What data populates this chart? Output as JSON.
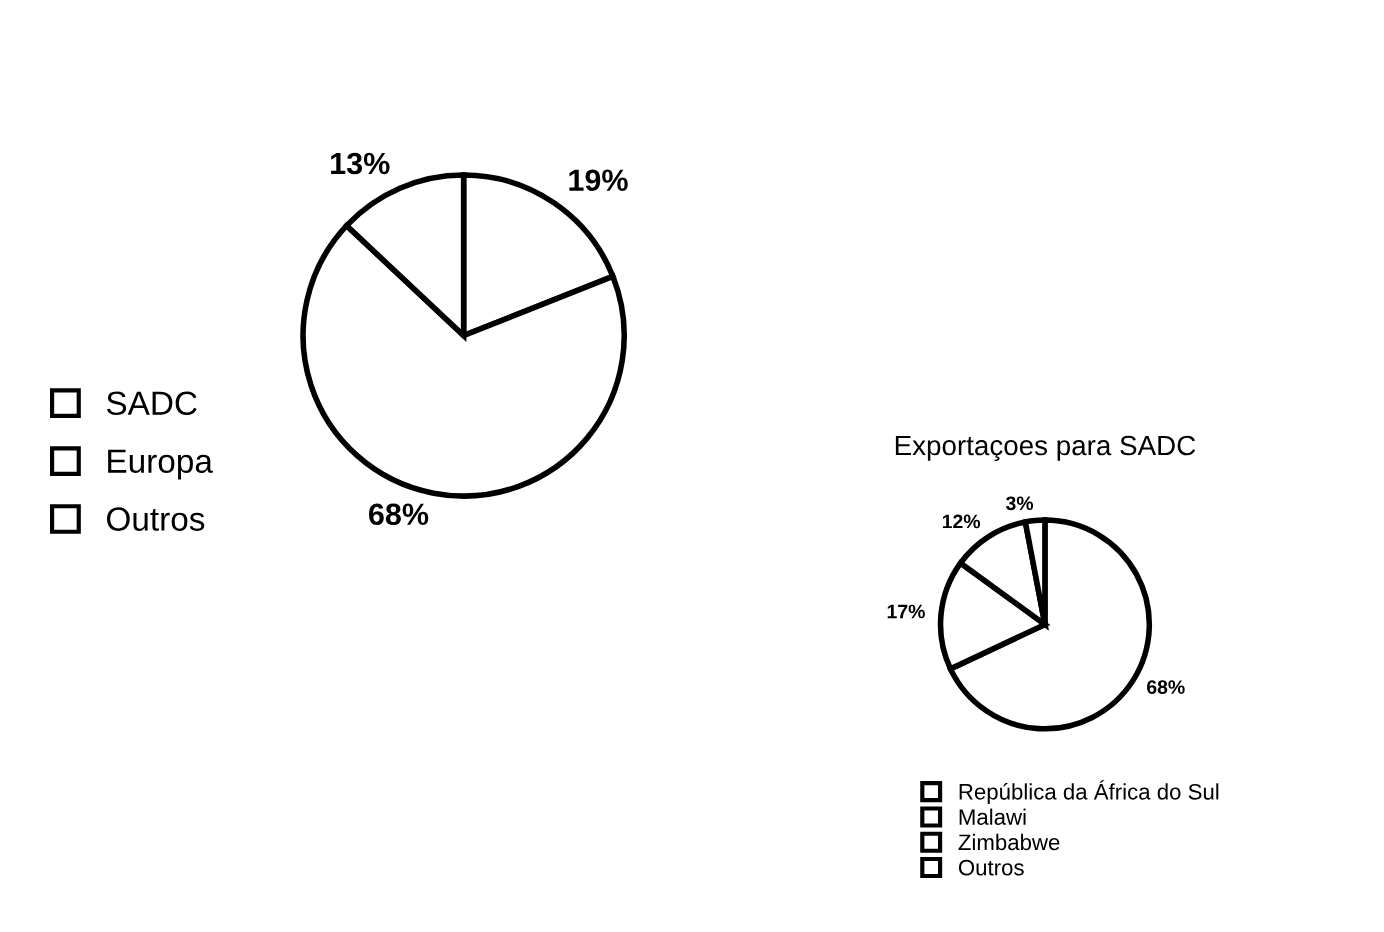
{
  "chart_data": [
    {
      "type": "pie",
      "categories": [
        "SADC",
        "Europa",
        "Outros"
      ],
      "values": [
        19,
        68,
        13
      ],
      "colors": [
        "#ffffff",
        "#ffffff",
        "#ffffff"
      ],
      "value_labels": [
        "19%",
        "68%",
        "13%"
      ],
      "legend": "left"
    },
    {
      "type": "pie",
      "title": "Exportaçoes para SADC",
      "categories": [
        "República da África do Sul",
        "Malawi",
        "Zimbabwe",
        "Outros"
      ],
      "values": [
        68,
        17,
        12,
        3
      ],
      "colors": [
        "#ffffff",
        "#ffffff",
        "#ffffff",
        "#ffffff"
      ],
      "value_labels": [
        "68%",
        "17%",
        "12%",
        "3%"
      ],
      "legend": "bottom"
    }
  ]
}
